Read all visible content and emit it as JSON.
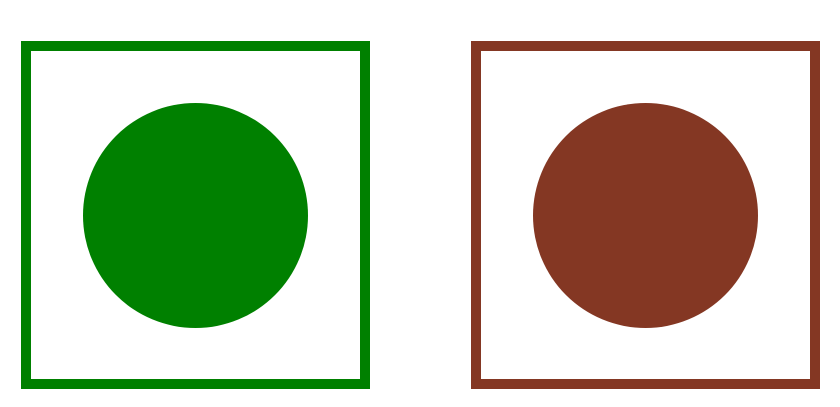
{
  "symbols": [
    {
      "name": "veg-mark",
      "color": "#008000"
    },
    {
      "name": "non-veg-mark",
      "color": "#843723"
    }
  ]
}
